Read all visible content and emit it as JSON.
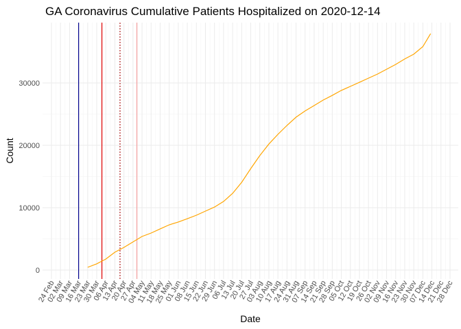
{
  "chart_data": {
    "type": "line",
    "title": "GA Coronavirus Cumulative Patients Hospitalized on 2020-12-14",
    "x_label": "Date",
    "y_label": "Count",
    "xticks": [
      "24 Feb",
      "02 Mar",
      "09 Mar",
      "16 Mar",
      "23 Mar",
      "30 Mar",
      "06 Apr",
      "13 Apr",
      "20 Apr",
      "27 Apr",
      "04 May",
      "11 May",
      "18 May",
      "25 May",
      "01 Jun",
      "08 Jun",
      "15 Jun",
      "22 Jun",
      "29 Jun",
      "06 Jul",
      "13 Jul",
      "20 Jul",
      "27 Jul",
      "03 Aug",
      "10 Aug",
      "17 Aug",
      "24 Aug",
      "31 Aug",
      "07 Sep",
      "14 Sep",
      "21 Sep",
      "28 Sep",
      "05 Oct",
      "12 Oct",
      "19 Oct",
      "26 Oct",
      "02 Nov",
      "09 Nov",
      "16 Nov",
      "23 Nov",
      "30 Nov",
      "07 Dec",
      "14 Dec",
      "21 Dec",
      "28 Dec"
    ],
    "x": [
      "23 Mar",
      "30 Mar",
      "06 Apr",
      "13 Apr",
      "20 Apr",
      "27 Apr",
      "04 May",
      "11 May",
      "18 May",
      "25 May",
      "01 Jun",
      "08 Jun",
      "15 Jun",
      "22 Jun",
      "29 Jun",
      "06 Jul",
      "13 Jul",
      "20 Jul",
      "27 Jul",
      "03 Aug",
      "10 Aug",
      "17 Aug",
      "24 Aug",
      "31 Aug",
      "07 Sep",
      "14 Sep",
      "21 Sep",
      "28 Sep",
      "05 Oct",
      "12 Oct",
      "19 Oct",
      "26 Oct",
      "02 Nov",
      "09 Nov",
      "16 Nov",
      "23 Nov",
      "30 Nov",
      "07 Dec",
      "13 Dec"
    ],
    "series": [
      {
        "color": "#ffa500",
        "values": [
          440,
          1000,
          1760,
          2860,
          3630,
          4500,
          5380,
          5930,
          6600,
          7250,
          7700,
          8240,
          8790,
          9450,
          10100,
          11000,
          12300,
          14070,
          16260,
          18350,
          20200,
          21760,
          23190,
          24500,
          25500,
          26370,
          27250,
          28000,
          28800,
          29450,
          30100,
          30770,
          31430,
          32200,
          32970,
          33850,
          34620,
          35820,
          37900
        ]
      }
    ],
    "vlines": [
      {
        "x": "16 Mar",
        "color": "#00008b",
        "dash": false
      },
      {
        "x": "03 Apr",
        "color": "#e00000",
        "dash": false
      },
      {
        "x": "17 Apr",
        "color": "#b22222",
        "dash": true
      },
      {
        "x": "30 Apr",
        "color": "#f4a0a0",
        "dash": false
      }
    ],
    "ylim": [
      -1430,
      39670
    ],
    "yticks": [
      0,
      10000,
      20000,
      30000
    ],
    "grid": true
  }
}
